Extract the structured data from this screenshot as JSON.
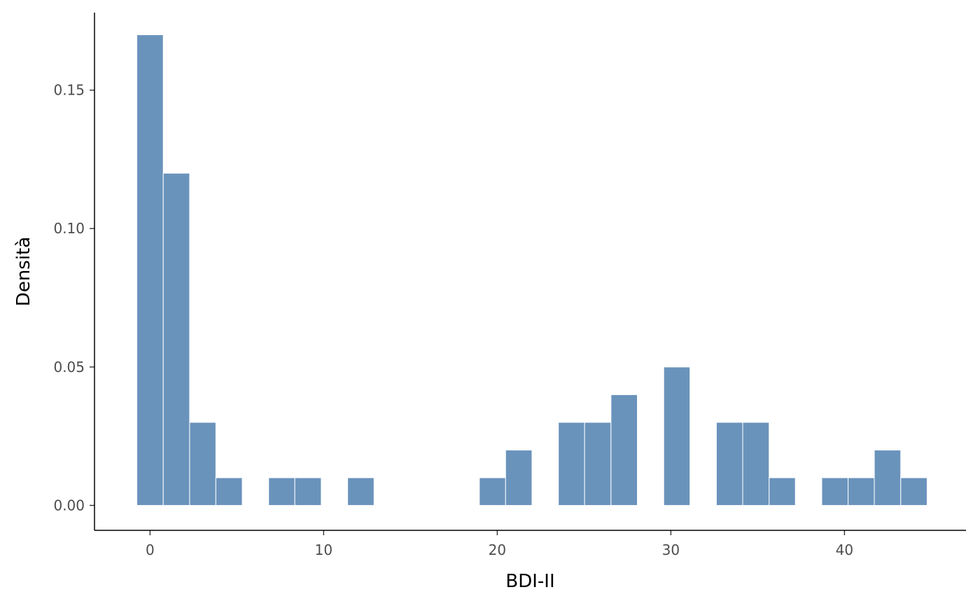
{
  "chart_data": {
    "type": "bar",
    "title": "",
    "xlabel": "BDI-II",
    "ylabel": "Densità",
    "bar_color": "#6a93bc",
    "bar_edge_color": "#ffffff",
    "xlim": [
      -3.2,
      47
    ],
    "ylim": [
      -0.009,
      0.178
    ],
    "xticks": [
      0,
      10,
      20,
      30,
      40
    ],
    "xtick_labels": [
      "0",
      "10",
      "20",
      "30",
      "40"
    ],
    "yticks": [
      0.0,
      0.05,
      0.1,
      0.15
    ],
    "ytick_labels": [
      "0.00",
      "0.05",
      "0.10",
      "0.15"
    ],
    "grid": false,
    "bins": [
      {
        "x0": -0.76,
        "x1": 0.76,
        "density": 0.17
      },
      {
        "x0": 0.76,
        "x1": 2.28,
        "density": 0.12
      },
      {
        "x0": 2.28,
        "x1": 3.79,
        "density": 0.03
      },
      {
        "x0": 3.79,
        "x1": 5.31,
        "density": 0.01
      },
      {
        "x0": 6.83,
        "x1": 8.34,
        "density": 0.01
      },
      {
        "x0": 8.34,
        "x1": 9.86,
        "density": 0.01
      },
      {
        "x0": 11.38,
        "x1": 12.9,
        "density": 0.01
      },
      {
        "x0": 18.97,
        "x1": 20.48,
        "density": 0.01
      },
      {
        "x0": 20.48,
        "x1": 22.0,
        "density": 0.02
      },
      {
        "x0": 23.52,
        "x1": 25.03,
        "density": 0.03
      },
      {
        "x0": 25.03,
        "x1": 26.55,
        "density": 0.03
      },
      {
        "x0": 26.55,
        "x1": 28.07,
        "density": 0.04
      },
      {
        "x0": 29.59,
        "x1": 31.1,
        "density": 0.05
      },
      {
        "x0": 32.62,
        "x1": 34.14,
        "density": 0.03
      },
      {
        "x0": 34.14,
        "x1": 35.66,
        "density": 0.03
      },
      {
        "x0": 35.66,
        "x1": 37.17,
        "density": 0.01
      },
      {
        "x0": 38.69,
        "x1": 40.21,
        "density": 0.01
      },
      {
        "x0": 40.21,
        "x1": 41.72,
        "density": 0.01
      },
      {
        "x0": 41.72,
        "x1": 43.24,
        "density": 0.02
      },
      {
        "x0": 43.24,
        "x1": 44.76,
        "density": 0.01
      }
    ]
  }
}
